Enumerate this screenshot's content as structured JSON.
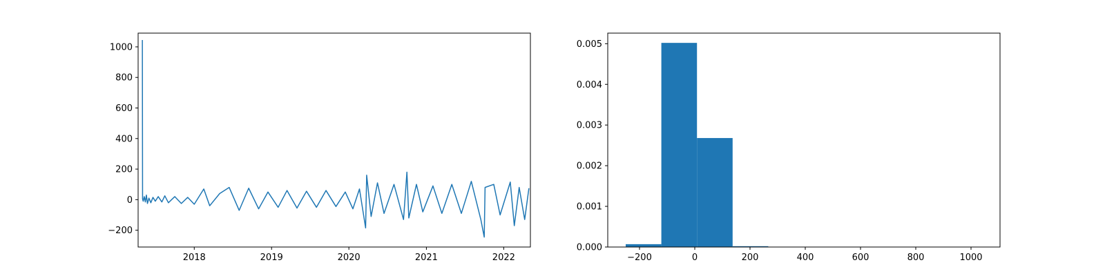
{
  "colors": {
    "series": "#1f77b4",
    "axes": "#000000",
    "background": "#ffffff"
  },
  "chart_data": [
    {
      "type": "line",
      "title": "",
      "xlabel": "",
      "ylabel": "",
      "x_axis": "date",
      "x_range": [
        "2017-04-11",
        "2022-05-07"
      ],
      "xticks": [
        {
          "label": "2018",
          "date": "2018-01-01"
        },
        {
          "label": "2019",
          "date": "2019-01-01"
        },
        {
          "label": "2020",
          "date": "2020-01-01"
        },
        {
          "label": "2021",
          "date": "2021-01-01"
        },
        {
          "label": "2022",
          "date": "2022-01-01"
        }
      ],
      "ylim": [
        -310,
        1090
      ],
      "yticks": [
        -200,
        0,
        200,
        400,
        600,
        800,
        1000
      ],
      "ytick_labels": [
        "−200",
        "0",
        "200",
        "400",
        "600",
        "800",
        "1000"
      ],
      "grid": false,
      "series": [
        {
          "x_start": "2017-05-01",
          "x_end": "2022-04-30",
          "points": [
            [
              "2017-05-01",
              1045
            ],
            [
              "2017-05-02",
              5
            ],
            [
              "2017-05-05",
              -10
            ],
            [
              "2017-05-10",
              20
            ],
            [
              "2017-05-15",
              -15
            ],
            [
              "2017-05-20",
              30
            ],
            [
              "2017-05-25",
              -25
            ],
            [
              "2017-06-01",
              10
            ],
            [
              "2017-06-10",
              -20
            ],
            [
              "2017-06-20",
              15
            ],
            [
              "2017-07-01",
              -10
            ],
            [
              "2017-07-15",
              20
            ],
            [
              "2017-08-01",
              -15
            ],
            [
              "2017-08-15",
              25
            ],
            [
              "2017-09-01",
              -20
            ],
            [
              "2017-10-01",
              20
            ],
            [
              "2017-11-01",
              -25
            ],
            [
              "2017-12-01",
              15
            ],
            [
              "2018-01-01",
              -30
            ],
            [
              "2018-02-15",
              70
            ],
            [
              "2018-03-15",
              -40
            ],
            [
              "2018-05-01",
              40
            ],
            [
              "2018-06-15",
              80
            ],
            [
              "2018-08-01",
              -70
            ],
            [
              "2018-09-15",
              75
            ],
            [
              "2018-11-01",
              -60
            ],
            [
              "2018-12-15",
              50
            ],
            [
              "2019-02-01",
              -50
            ],
            [
              "2019-03-15",
              60
            ],
            [
              "2019-05-01",
              -55
            ],
            [
              "2019-06-15",
              55
            ],
            [
              "2019-08-01",
              -50
            ],
            [
              "2019-09-15",
              60
            ],
            [
              "2019-11-01",
              -45
            ],
            [
              "2019-12-15",
              50
            ],
            [
              "2020-01-20",
              -60
            ],
            [
              "2020-02-20",
              70
            ],
            [
              "2020-03-20",
              -185
            ],
            [
              "2020-03-25",
              160
            ],
            [
              "2020-04-15",
              -110
            ],
            [
              "2020-05-15",
              110
            ],
            [
              "2020-06-15",
              -90
            ],
            [
              "2020-08-01",
              100
            ],
            [
              "2020-09-15",
              -130
            ],
            [
              "2020-10-01",
              180
            ],
            [
              "2020-10-10",
              -120
            ],
            [
              "2020-11-15",
              100
            ],
            [
              "2020-12-15",
              -80
            ],
            [
              "2021-02-01",
              90
            ],
            [
              "2021-03-15",
              -90
            ],
            [
              "2021-05-01",
              100
            ],
            [
              "2021-06-15",
              -90
            ],
            [
              "2021-08-01",
              120
            ],
            [
              "2021-09-15",
              -130
            ],
            [
              "2021-10-01",
              -245
            ],
            [
              "2021-10-05",
              80
            ],
            [
              "2021-11-15",
              100
            ],
            [
              "2021-12-15",
              -100
            ],
            [
              "2022-02-01",
              115
            ],
            [
              "2022-02-20",
              -170
            ],
            [
              "2022-03-15",
              80
            ],
            [
              "2022-04-10",
              -130
            ],
            [
              "2022-04-30",
              75
            ]
          ]
        }
      ]
    },
    {
      "type": "histogram",
      "title": "",
      "xlabel": "",
      "ylabel": "",
      "xlim": [
        -315,
        1105
      ],
      "ylim": [
        0,
        0.00526
      ],
      "xticks": [
        -200,
        0,
        200,
        400,
        600,
        800,
        1000
      ],
      "xtick_labels": [
        "−200",
        "0",
        "200",
        "400",
        "600",
        "800",
        "1000"
      ],
      "yticks": [
        0.0,
        0.001,
        0.002,
        0.003,
        0.004,
        0.005
      ],
      "ytick_labels": [
        "0.000",
        "0.001",
        "0.002",
        "0.003",
        "0.004",
        "0.005"
      ],
      "grid": false,
      "bins": [
        {
          "start": -250,
          "end": -121,
          "value": 7e-05
        },
        {
          "start": -121,
          "end": 8,
          "value": 0.00502
        },
        {
          "start": 8,
          "end": 137,
          "value": 0.00268
        },
        {
          "start": 137,
          "end": 266,
          "value": 2e-05
        },
        {
          "start": 266,
          "end": 395,
          "value": 0.0
        },
        {
          "start": 395,
          "end": 524,
          "value": 0.0
        },
        {
          "start": 524,
          "end": 653,
          "value": 0.0
        },
        {
          "start": 653,
          "end": 782,
          "value": 0.0
        },
        {
          "start": 782,
          "end": 911,
          "value": 0.0
        },
        {
          "start": 911,
          "end": 1040,
          "value": 8e-07
        }
      ]
    }
  ]
}
